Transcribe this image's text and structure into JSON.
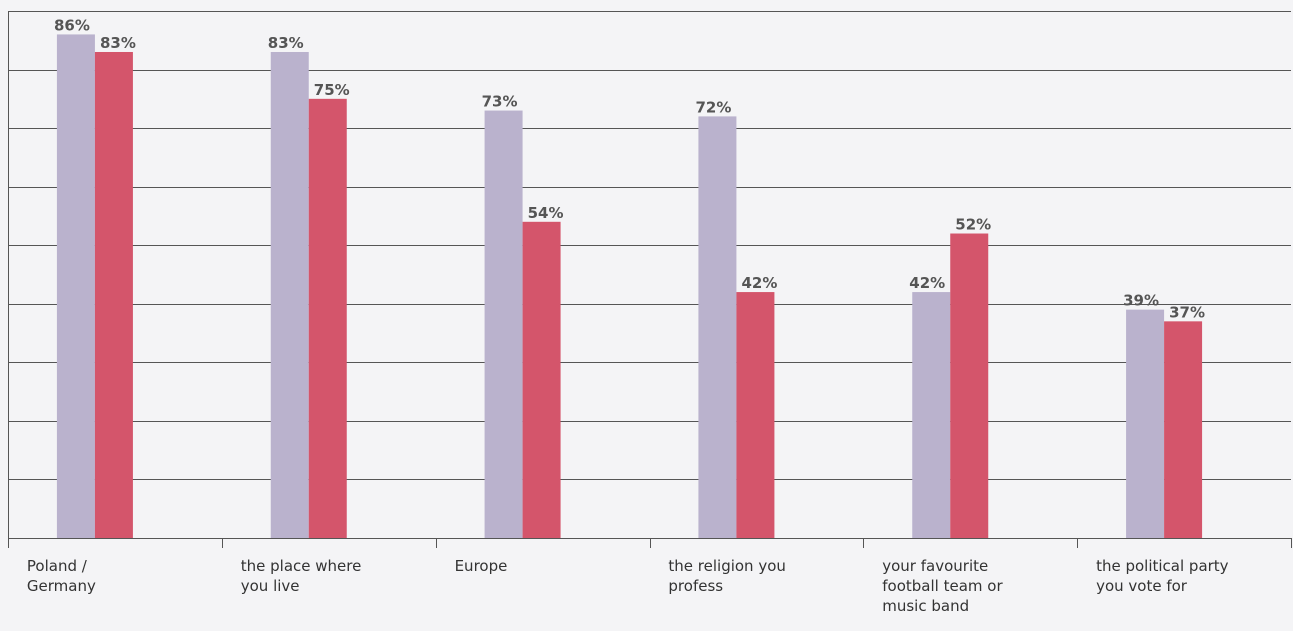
{
  "chart_data": {
    "type": "bar",
    "categories": [
      "Poland /\nGermany",
      "the place where\nyou live",
      "Europe",
      "the religion you\nprofess",
      "your favourite\nfootball team or\nmusic band",
      "the political party\nyou vote for"
    ],
    "series": [
      {
        "values": [
          86,
          83,
          73,
          72,
          42,
          39
        ],
        "labels": [
          "86%",
          "83%",
          "73%",
          "72%",
          "42%",
          "39%"
        ]
      },
      {
        "values": [
          83,
          75,
          54,
          42,
          52,
          37
        ],
        "labels": [
          "83%",
          "75%",
          "54%",
          "42%",
          "52%",
          "37%"
        ]
      }
    ],
    "ylim": [
      0,
      90
    ],
    "grid": true,
    "legend": "none",
    "colors": [
      "#bab2cd",
      "#d4556b"
    ]
  }
}
